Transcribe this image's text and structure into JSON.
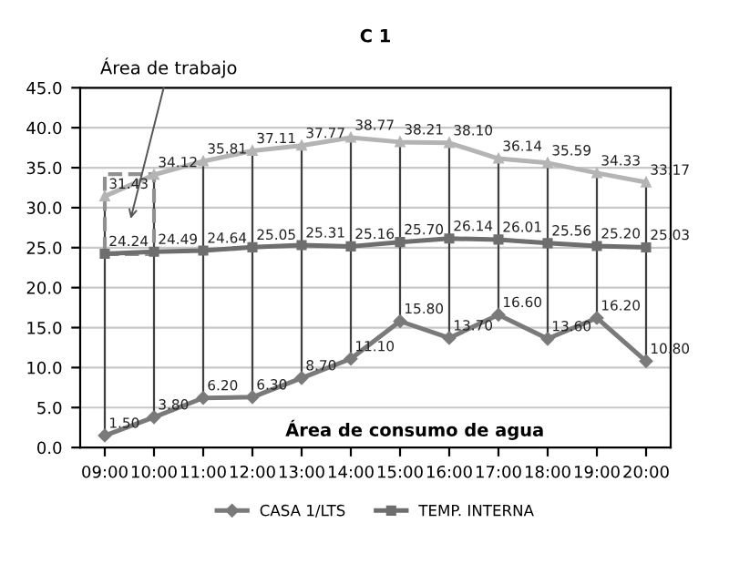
{
  "chart_data": {
    "type": "line",
    "title": "C 1",
    "categories": [
      "09:00",
      "10:00",
      "11:00",
      "12:00",
      "13:00",
      "14:00",
      "15:00",
      "16:00",
      "17:00",
      "18:00",
      "19:00",
      "20:00"
    ],
    "series": [
      {
        "color": "#b4b4b4",
        "marker": "triangle",
        "values": [
          31.43,
          34.12,
          35.81,
          37.11,
          37.77,
          38.77,
          38.21,
          38.1,
          36.14,
          35.59,
          34.33,
          33.17
        ],
        "value_labels": [
          "31.43",
          "34.12",
          "35.81",
          "37.11",
          "37.77",
          "38.77",
          "38.21",
          "38.10",
          "36.14",
          "35.59",
          "34.33",
          "33.17"
        ]
      },
      {
        "name": "TEMP. INTERNA",
        "color": "#6e6e6e",
        "marker": "square",
        "values": [
          24.24,
          24.49,
          24.64,
          25.05,
          25.31,
          25.16,
          25.7,
          26.14,
          26.01,
          25.56,
          25.2,
          25.03
        ],
        "value_labels": [
          "24.24",
          "24.49",
          "24.64",
          "25.05",
          "25.31",
          "25.16",
          "25.70",
          "26.14",
          "26.01",
          "25.56",
          "25.20",
          "25.03"
        ]
      },
      {
        "name": "CASA 1/LTS",
        "color": "#7a7a7a",
        "marker": "diamond",
        "values": [
          1.5,
          3.8,
          6.2,
          6.3,
          8.7,
          11.1,
          15.8,
          13.7,
          16.6,
          13.6,
          16.2,
          10.8
        ],
        "value_labels": [
          "1.50",
          "3.80",
          "6.20",
          "6.30",
          "8.70",
          "11.10",
          "15.80",
          "13.70",
          "16.60",
          "13.60",
          "16.20",
          "10.80"
        ]
      }
    ],
    "ylim": [
      0,
      45
    ],
    "yticks": [
      {
        "value": 0,
        "label": "0.0"
      },
      {
        "value": 5,
        "label": "5.0"
      },
      {
        "value": 10,
        "label": "10.0"
      },
      {
        "value": 15,
        "label": "15.0"
      },
      {
        "value": 20,
        "label": "20.0"
      },
      {
        "value": 25,
        "label": "25.0"
      },
      {
        "value": 30,
        "label": "30.0"
      },
      {
        "value": 35,
        "label": "35.0"
      },
      {
        "value": 40,
        "label": "40.0"
      },
      {
        "value": 45,
        "label": "45.0"
      }
    ],
    "grid": "y",
    "legend": "bottom",
    "annotations": [
      "Área de trabajo",
      "Área de consumo de agua"
    ]
  }
}
